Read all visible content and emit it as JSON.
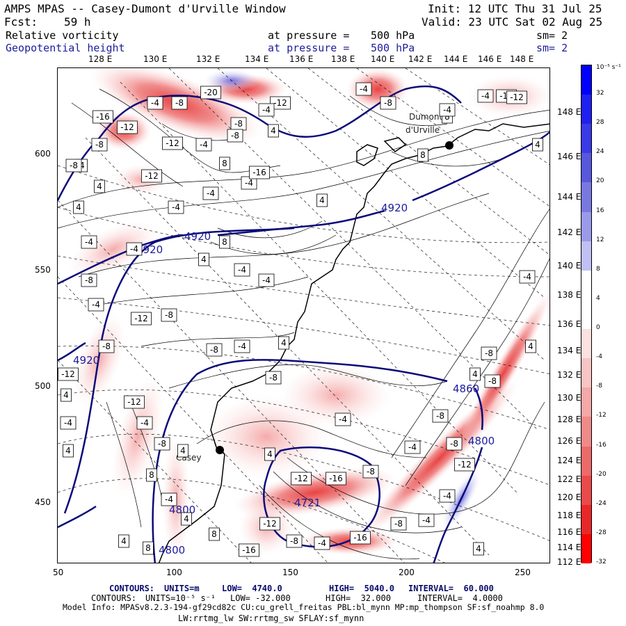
{
  "header": {
    "title": "AMPS MPAS -- Casey-Dumont d'Urville Window",
    "forecast_label": "Fcst:",
    "forecast_hours": "59 h",
    "init": "Init: 12 UTC Thu 31 Jul 25",
    "valid": "Valid: 23 UTC Sat 02 Aug 25"
  },
  "fields": [
    {
      "name": "Relative vorticity",
      "pressure_label": "at pressure =",
      "pressure": "500 hPa",
      "sm": "sm= 2",
      "color": "#000000"
    },
    {
      "name": "Geopotential height",
      "pressure_label": "at pressure =",
      "pressure": "500 hPa",
      "sm": "sm= 2",
      "color": "#1c1c9c"
    }
  ],
  "map": {
    "top_lon_labels": [
      "128 E",
      "130 E",
      "132 E",
      "134 E",
      "136 E",
      "138 E",
      "140 E",
      "142 E",
      "144 E",
      "146 E",
      "148 E"
    ],
    "right_lon_labels": [
      "148 E",
      "146 E",
      "144 E",
      "142 E",
      "140 E",
      "138 E",
      "136 E",
      "134 E",
      "132 E",
      "130 E",
      "128 E",
      "126 E",
      "124 E",
      "122 E",
      "120 E",
      "118 E",
      "116 E",
      "114 E",
      "112 E"
    ],
    "x_ticks": [
      "50",
      "100",
      "150",
      "200",
      "250"
    ],
    "y_ticks": [
      "600",
      "550",
      "500",
      "450"
    ],
    "stations": [
      {
        "name": "Dumont d'Urville",
        "label": "Dumont\nd'Urville"
      },
      {
        "name": "Casey",
        "label": "Casey"
      }
    ],
    "height_labels": [
      "4920",
      "4920",
      "4920",
      "4920",
      "4860",
      "4800",
      "4800",
      "4721",
      "4800"
    ],
    "vorticity_labels": [
      "-20",
      "-4",
      "-8",
      "-12",
      "-16",
      "-12",
      "-4",
      "-8",
      "-4",
      "4",
      "-8",
      "-4",
      "-12",
      "-8",
      "8",
      "-4",
      "-12",
      "4",
      "8",
      "4",
      "-8",
      "-12",
      "4",
      "-4",
      "-16",
      "-8",
      "-4",
      "8",
      "4",
      "-4",
      "-4",
      "-4",
      "8",
      "4",
      "-4",
      "-4",
      "-8",
      "-4",
      "-4",
      "-12",
      "-8",
      "-8",
      "-4",
      "-8",
      "4",
      "-8",
      "-12",
      "-4",
      "-8",
      "4",
      "8",
      "-4",
      "8",
      "4",
      "-4",
      "-8",
      "-8",
      "-4",
      "-12",
      "-16",
      "-8",
      "-12",
      "-8",
      "-4",
      "-4",
      "-12",
      "-16",
      "-16",
      "-8",
      "-4",
      "-8",
      "4",
      "8",
      "4",
      "-4",
      "4",
      "4",
      "-12",
      "4",
      "-8",
      "4",
      "-12",
      "-4",
      "4",
      "4"
    ]
  },
  "colorbar": {
    "unit": "10⁻⁵ s⁻¹",
    "labels": [
      "32",
      "28",
      "24",
      "20",
      "16",
      "12",
      "8",
      "4",
      "0",
      "-4",
      "-8",
      "-12",
      "-16",
      "-20",
      "-24",
      "-28",
      "-32"
    ],
    "colors": [
      "#0000ff",
      "#2020f0",
      "#3a3ae6",
      "#5858dc",
      "#7878e0",
      "#9a9aea",
      "#c0c0f4",
      "#ffffff",
      "#ffffff",
      "#fde0e0",
      "#f8c4c4",
      "#f4a8a8",
      "#f08a8a",
      "#ec6a6a",
      "#ea4a4a",
      "#e82828",
      "#ff0000"
    ]
  },
  "footer": {
    "contours1": {
      "label": "CONTOURS:",
      "units": "UNITS=m",
      "low": "LOW=  4740.0",
      "high": "HIGH=  5040.0",
      "interval": "INTERVAL=  60.000"
    },
    "contours2": {
      "label": "CONTOURS:",
      "units": "UNITS=10⁻⁵ s⁻¹",
      "low": "LOW= -32.000",
      "high": "HIGH=  32.000",
      "interval": "INTERVAL=  4.0000"
    },
    "model_info": "Model Info: MPASv8.2.3-194-gf29cd82c CU:cu_grell_freitas PBL:bl_mynn MP:mp_thompson SF:sf_noahmp 8.0",
    "model_info2": "LW:rrtmg_lw SW:rrtmg_sw SFLAY:sf_mynn"
  }
}
